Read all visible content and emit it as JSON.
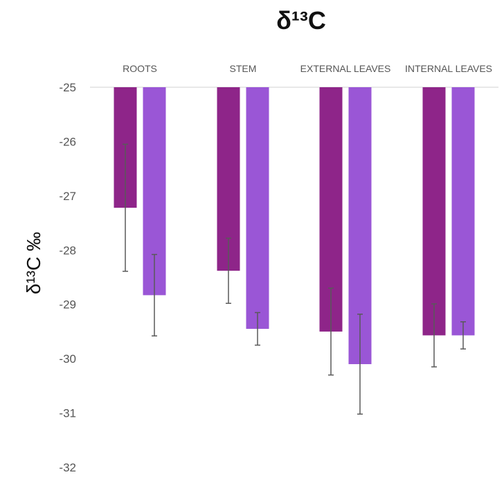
{
  "chart_data": {
    "type": "bar",
    "title": "δ¹³C",
    "ylabel": "δ¹³C ‰",
    "xlabel": "",
    "categories": [
      "ROOTS",
      "STEM",
      "EXTERNAL LEAVES",
      "INTERNAL LEAVES"
    ],
    "series": [
      {
        "values": [
          -27.22,
          -28.38,
          -29.5,
          -29.57
        ],
        "errors": [
          1.17,
          0.6,
          0.8,
          0.58
        ],
        "color": "#8e2589"
      },
      {
        "values": [
          -28.83,
          -29.45,
          -30.1,
          -29.57
        ],
        "errors": [
          0.75,
          0.3,
          0.92,
          0.25
        ],
        "color": "#9a56d6"
      }
    ],
    "ylim": [
      -32,
      -25
    ],
    "yticks": [
      -25,
      -26,
      -27,
      -28,
      -29,
      -30,
      -31,
      -32
    ],
    "category_axis_position": "top",
    "y_inverted": true,
    "grid": false,
    "legend": "none"
  }
}
